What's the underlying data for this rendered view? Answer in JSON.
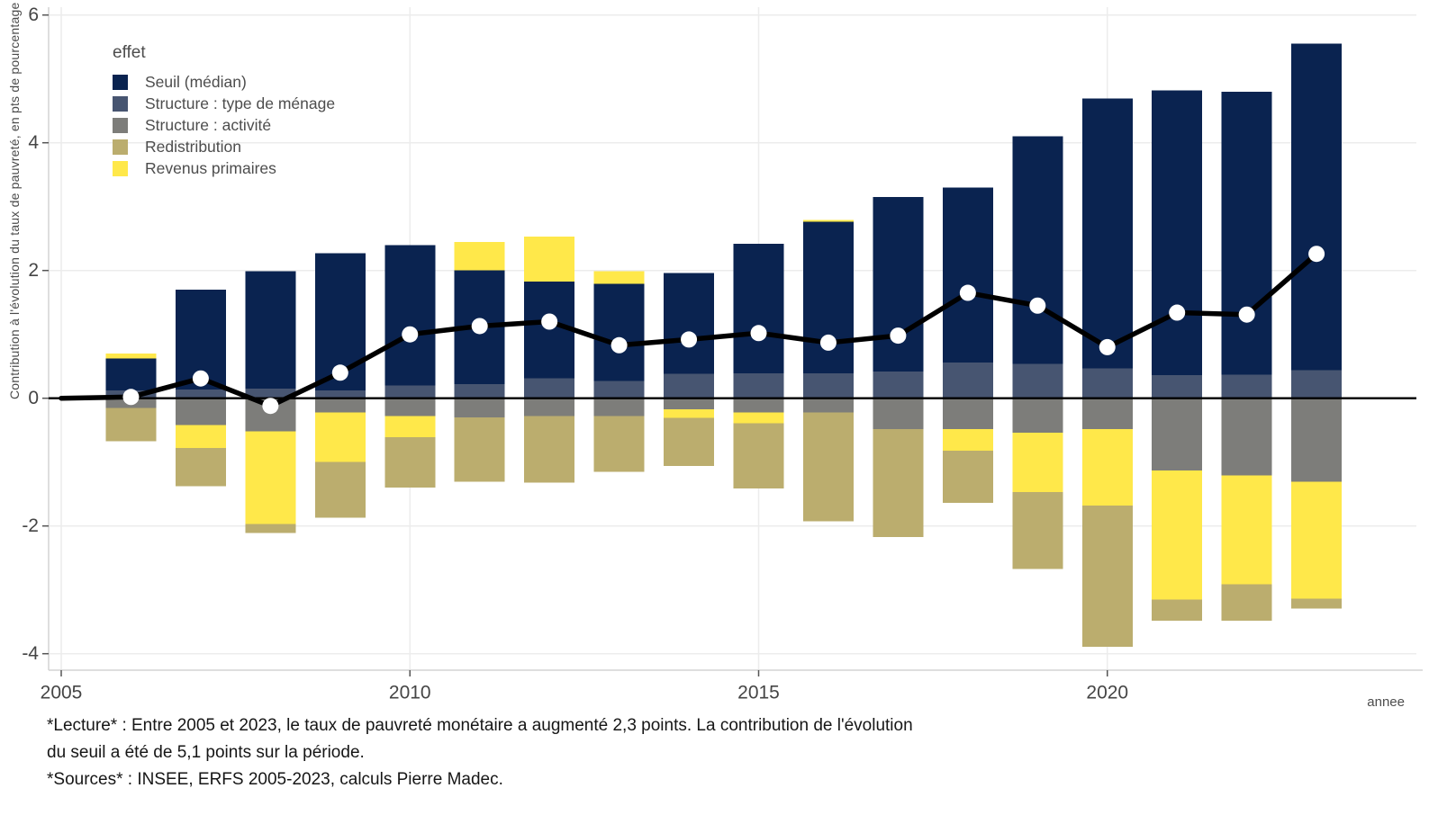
{
  "axes": {
    "y_title": "Contribution à l'évolution du taux de pauvreté, en pts de pourcentage",
    "x_title": "annee",
    "y_ticks": [
      6,
      4,
      2,
      0,
      -2,
      -4
    ],
    "x_ticks": [
      2005,
      2010,
      2015,
      2020
    ]
  },
  "legend": {
    "title": "effet"
  },
  "footer": {
    "line1": "*Lecture* : Entre 2005 et 2023, le taux de pauvreté monétaire a augmenté 2,3 points. La contribution de l'évolution",
    "line2": "du seuil a été de 5,1 points sur la période.",
    "line3": "*Sources* : INSEE, ERFS 2005-2023, calculs Pierre Madec."
  },
  "chart_data": {
    "type": "bar",
    "subtype": "stacked-bars-with-total-line",
    "title": "",
    "xlabel": "annee",
    "ylabel": "Contribution à l'évolution du taux de pauvreté, en pts de pourcentage",
    "ylim": [
      -4.6,
      6.05
    ],
    "yticks": [
      6,
      4,
      2,
      0,
      -2,
      -4
    ],
    "xticks": [
      2005,
      2010,
      2015,
      2020
    ],
    "grid": "horizontal and vertical light gridlines at ticks",
    "legend_title": "effet",
    "legend_position": "top-left inside plot",
    "x": [
      2005,
      2006,
      2007,
      2008,
      2009,
      2010,
      2011,
      2012,
      2013,
      2014,
      2015,
      2016,
      2017,
      2018,
      2019,
      2020,
      2021,
      2022,
      2023
    ],
    "series": [
      {
        "key": "seuil",
        "name": "Seuil (médian)",
        "color": "#0a2350",
        "values": [
          0,
          0.5,
          1.56,
          1.84,
          2.15,
          2.2,
          1.78,
          1.52,
          1.52,
          1.58,
          2.03,
          2.37,
          2.73,
          2.74,
          3.56,
          4.22,
          4.46,
          4.43,
          5.11
        ]
      },
      {
        "key": "menage",
        "name": "Structure : type de ménage",
        "color": "#475571",
        "values": [
          0,
          0.12,
          0.14,
          0.15,
          0.12,
          0.2,
          0.22,
          0.31,
          0.27,
          0.38,
          0.39,
          0.39,
          0.42,
          0.56,
          0.54,
          0.47,
          0.36,
          0.37,
          0.44
        ]
      },
      {
        "key": "activite",
        "name": "Structure : activité",
        "color": "#7d7d7a",
        "values": [
          0,
          -0.15,
          -0.42,
          -0.52,
          -0.22,
          -0.28,
          -0.3,
          -0.28,
          -0.28,
          -0.17,
          -0.22,
          -0.22,
          -0.48,
          -0.48,
          -0.54,
          -0.48,
          -1.13,
          -1.21,
          -1.31
        ]
      },
      {
        "key": "redistribution",
        "name": "Redistribution",
        "color": "#bbad6e",
        "values": [
          0,
          -0.52,
          -0.6,
          -0.14,
          -0.87,
          -0.79,
          -1.01,
          -1.04,
          -0.87,
          -0.75,
          -1.02,
          -1.71,
          -1.69,
          -0.82,
          -1.2,
          -2.21,
          -0.33,
          -0.57,
          -0.15
        ]
      },
      {
        "key": "revenus",
        "name": "Revenus primaires",
        "color": "#ffe84a",
        "values": [
          0,
          0.08,
          -0.36,
          -1.45,
          -0.78,
          -0.33,
          0.45,
          0.7,
          0.2,
          -0.14,
          -0.17,
          0.03,
          0.0,
          -0.34,
          -0.93,
          -1.2,
          -2.02,
          -1.7,
          -1.83
        ]
      }
    ],
    "total_line": {
      "color": "#000000",
      "marker_fill": "#ffffff",
      "values": [
        0,
        0.02,
        0.31,
        -0.12,
        0.4,
        1.0,
        1.13,
        1.2,
        0.83,
        0.92,
        1.02,
        0.87,
        0.98,
        1.65,
        1.45,
        0.8,
        1.34,
        1.31,
        2.26
      ]
    }
  },
  "colors": {
    "background": "#ffffff",
    "gridline": "#ececec",
    "axis_line": "#d4d4d4",
    "zero_line": "#000000",
    "tick_label": "#454545"
  }
}
